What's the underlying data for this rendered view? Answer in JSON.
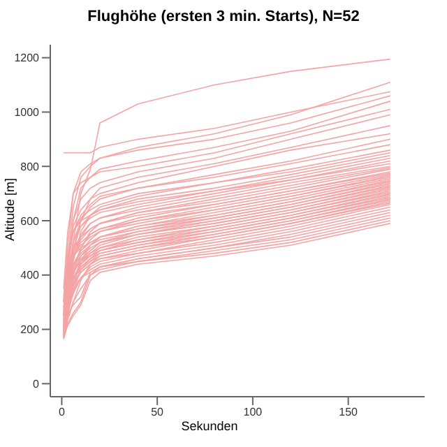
{
  "chart_data": {
    "type": "line",
    "title": "Flughöhe (ersten 3 min. Starts), N=52",
    "xlabel": "Sekunden",
    "ylabel": "Altitude [m]",
    "x": [
      1,
      3,
      6,
      10,
      15,
      20,
      40,
      80,
      120,
      172
    ],
    "xlim": [
      -6,
      190
    ],
    "xticks": [
      0,
      50,
      100,
      150
    ],
    "ylim": [
      -48,
      1248
    ],
    "yticks": [
      0,
      200,
      400,
      600,
      800,
      1000,
      1200
    ],
    "grid": false,
    "legend": false,
    "marker": "none",
    "line_style": "solid",
    "series": [
      {
        "color": "#f4a4a4",
        "values": [
          168,
          300,
          520,
          700,
          790,
          960,
          1030,
          1100,
          1150,
          1195
        ]
      },
      {
        "color": "#f4a4a4",
        "values": [
          850,
          850,
          850,
          850,
          850,
          870,
          900,
          940,
          1000,
          1075
        ]
      },
      {
        "color": "#f4a4a4",
        "values": [
          250,
          450,
          650,
          760,
          800,
          830,
          870,
          920,
          990,
          1110
        ]
      },
      {
        "color": "#f4a4a4",
        "values": [
          300,
          500,
          700,
          780,
          810,
          830,
          860,
          900,
          960,
          1060
        ]
      },
      {
        "color": "#f4a4a4",
        "values": [
          200,
          400,
          600,
          720,
          760,
          790,
          820,
          870,
          930,
          1040
        ]
      },
      {
        "color": "#f4a4a4",
        "values": [
          350,
          550,
          700,
          740,
          760,
          780,
          800,
          850,
          920,
          1010
        ]
      },
      {
        "color": "#f4a4a4",
        "values": [
          250,
          420,
          600,
          680,
          720,
          740,
          780,
          830,
          900,
          990
        ]
      },
      {
        "color": "#f4a4a4",
        "values": [
          182,
          300,
          480,
          600,
          680,
          720,
          760,
          810,
          870,
          950
        ]
      },
      {
        "color": "#f4a4a4",
        "values": [
          300,
          450,
          580,
          640,
          680,
          700,
          740,
          800,
          860,
          920
        ]
      },
      {
        "color": "#f4a4a4",
        "values": [
          204,
          380,
          520,
          600,
          650,
          680,
          720,
          770,
          820,
          900
        ]
      },
      {
        "color": "#f4a4a4",
        "values": [
          270,
          420,
          560,
          620,
          660,
          690,
          720,
          760,
          810,
          880
        ]
      },
      {
        "color": "#f4a4a4",
        "values": [
          222,
          350,
          500,
          580,
          620,
          650,
          690,
          740,
          790,
          860
        ]
      },
      {
        "color": "#f4a4a4",
        "values": [
          306,
          450,
          560,
          610,
          640,
          660,
          700,
          740,
          780,
          850
        ]
      },
      {
        "color": "#f4a4a4",
        "values": [
          178,
          300,
          450,
          560,
          620,
          640,
          680,
          720,
          770,
          840
        ]
      },
      {
        "color": "#f4a4a4",
        "values": [
          252,
          400,
          520,
          580,
          610,
          630,
          660,
          710,
          760,
          830
        ]
      },
      {
        "color": "#f4a4a4",
        "values": [
          320,
          470,
          560,
          600,
          620,
          640,
          670,
          710,
          750,
          820
        ]
      },
      {
        "color": "#f4a4a4",
        "values": [
          198,
          330,
          460,
          540,
          590,
          610,
          650,
          700,
          750,
          810
        ]
      },
      {
        "color": "#f4a4a4",
        "values": [
          260,
          380,
          480,
          550,
          590,
          610,
          640,
          690,
          740,
          800
        ]
      },
      {
        "color": "#f4a4a4",
        "values": [
          172,
          280,
          400,
          500,
          560,
          590,
          630,
          680,
          730,
          795
        ]
      },
      {
        "color": "#f4a4a4",
        "values": [
          230,
          360,
          470,
          530,
          570,
          590,
          630,
          670,
          720,
          790
        ]
      },
      {
        "color": "#f4a4a4",
        "values": [
          302,
          420,
          500,
          540,
          570,
          590,
          620,
          660,
          710,
          780
        ]
      },
      {
        "color": "#f4a4a4",
        "values": [
          192,
          310,
          420,
          500,
          550,
          570,
          610,
          660,
          710,
          775
        ]
      },
      {
        "color": "#f4a4a4",
        "values": [
          248,
          380,
          470,
          520,
          550,
          570,
          600,
          650,
          700,
          770
        ]
      },
      {
        "color": "#f4a4a4",
        "values": [
          212,
          330,
          430,
          490,
          530,
          560,
          600,
          640,
          690,
          765
        ]
      },
      {
        "color": "#f4a4a4",
        "values": [
          280,
          400,
          470,
          510,
          540,
          560,
          590,
          640,
          690,
          760
        ]
      },
      {
        "color": "#f4a4a4",
        "values": [
          174,
          260,
          360,
          450,
          510,
          540,
          580,
          630,
          680,
          755
        ]
      },
      {
        "color": "#f4a4a4",
        "values": [
          240,
          360,
          440,
          490,
          520,
          540,
          580,
          620,
          670,
          750
        ]
      },
      {
        "color": "#f4a4a4",
        "values": [
          202,
          300,
          400,
          470,
          510,
          540,
          570,
          620,
          670,
          745
        ]
      },
      {
        "color": "#f4a4a4",
        "values": [
          298,
          410,
          470,
          500,
          520,
          540,
          570,
          610,
          660,
          740
        ]
      },
      {
        "color": "#f4a4a4",
        "values": [
          184,
          280,
          380,
          450,
          490,
          520,
          560,
          610,
          660,
          735
        ]
      },
      {
        "color": "#f4a4a4",
        "values": [
          258,
          370,
          440,
          480,
          510,
          530,
          560,
          600,
          650,
          730
        ]
      },
      {
        "color": "#f4a4a4",
        "values": [
          224,
          330,
          410,
          460,
          490,
          520,
          550,
          600,
          650,
          725
        ]
      },
      {
        "color": "#f4a4a4",
        "values": [
          194,
          290,
          380,
          440,
          480,
          510,
          550,
          590,
          640,
          720
        ]
      },
      {
        "color": "#f4a4a4",
        "values": [
          270,
          370,
          430,
          470,
          500,
          520,
          550,
          590,
          640,
          715
        ]
      },
      {
        "color": "#f4a4a4",
        "values": [
          214,
          310,
          390,
          440,
          470,
          500,
          540,
          580,
          630,
          710
        ]
      },
      {
        "color": "#f4a4a4",
        "values": [
          176,
          250,
          340,
          420,
          460,
          490,
          530,
          580,
          630,
          705
        ]
      },
      {
        "color": "#f4a4a4",
        "values": [
          238,
          340,
          410,
          450,
          480,
          500,
          530,
          570,
          620,
          700
        ]
      },
      {
        "color": "#f4a4a4",
        "values": [
          206,
          300,
          380,
          430,
          460,
          490,
          520,
          570,
          620,
          695
        ]
      },
      {
        "color": "#f4a4a4",
        "values": [
          282,
          370,
          420,
          450,
          470,
          490,
          520,
          560,
          610,
          690
        ]
      },
      {
        "color": "#f4a4a4",
        "values": [
          188,
          280,
          360,
          420,
          450,
          480,
          510,
          560,
          610,
          685
        ]
      },
      {
        "color": "#f4a4a4",
        "values": [
          232,
          330,
          390,
          430,
          460,
          480,
          510,
          550,
          600,
          680
        ]
      },
      {
        "color": "#f4a4a4",
        "values": [
          166,
          230,
          300,
          380,
          440,
          470,
          500,
          550,
          600,
          675
        ]
      },
      {
        "color": "#f4a4a4",
        "values": [
          254,
          340,
          390,
          420,
          450,
          470,
          500,
          540,
          590,
          670
        ]
      },
      {
        "color": "#f4a4a4",
        "values": [
          208,
          290,
          360,
          410,
          440,
          460,
          490,
          540,
          590,
          665
        ]
      },
      {
        "color": "#f4a4a4",
        "values": [
          186,
          260,
          330,
          390,
          430,
          450,
          480,
          530,
          580,
          660
        ]
      },
      {
        "color": "#f4a4a4",
        "values": [
          226,
          310,
          370,
          410,
          440,
          460,
          480,
          520,
          570,
          650
        ]
      },
      {
        "color": "#f4a4a4",
        "values": [
          196,
          270,
          340,
          390,
          420,
          440,
          470,
          510,
          560,
          640
        ]
      },
      {
        "color": "#f4a4a4",
        "values": [
          164,
          220,
          260,
          300,
          400,
          430,
          460,
          500,
          550,
          630
        ]
      },
      {
        "color": "#f4a4a4",
        "values": [
          216,
          290,
          350,
          390,
          410,
          430,
          460,
          500,
          540,
          620
        ]
      },
      {
        "color": "#f4a4a4",
        "values": [
          180,
          244,
          300,
          350,
          400,
          420,
          450,
          490,
          530,
          610
        ]
      },
      {
        "color": "#f4a4a4",
        "values": [
          200,
          256,
          290,
          320,
          410,
          430,
          450,
          480,
          520,
          600
        ]
      },
      {
        "color": "#f4a4a4",
        "values": [
          170,
          212,
          250,
          290,
          380,
          410,
          440,
          470,
          510,
          590
        ]
      }
    ]
  }
}
